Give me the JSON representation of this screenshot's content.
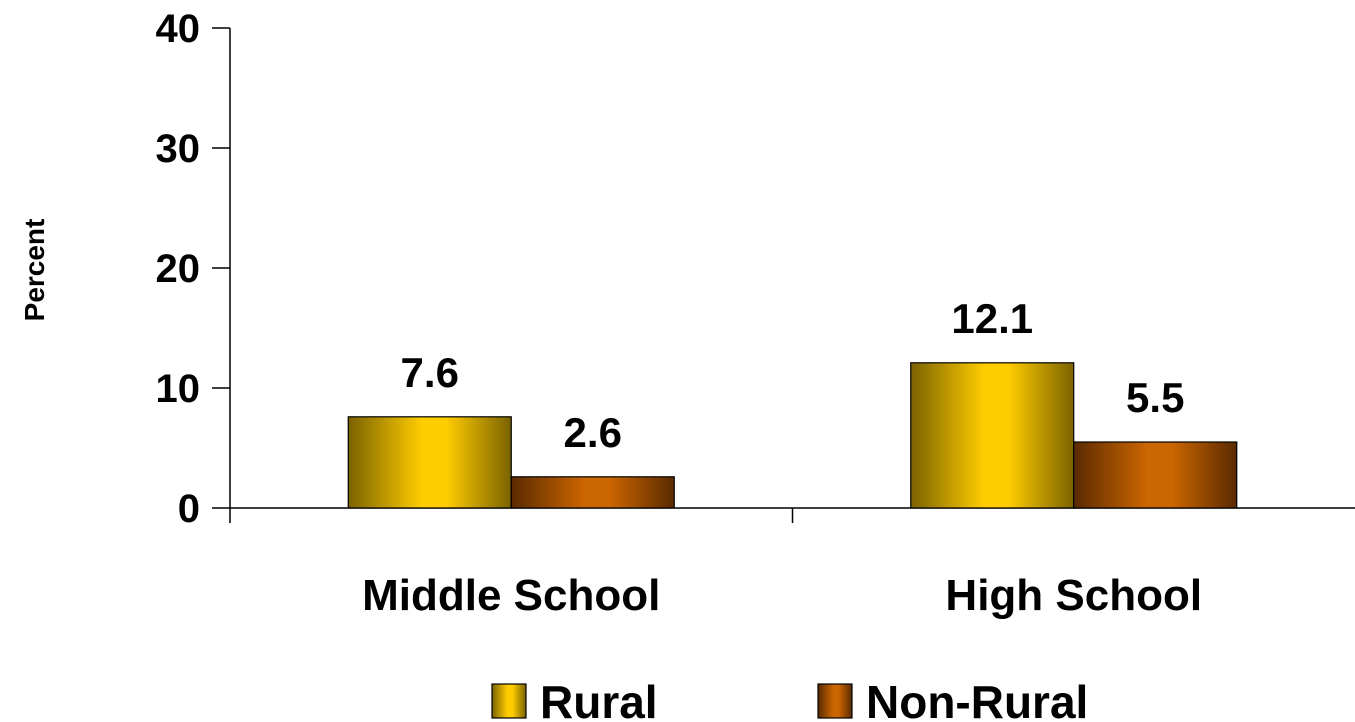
{
  "chart_data": {
    "type": "bar",
    "title": "",
    "xlabel": "",
    "ylabel": "Percent",
    "ylim": [
      0,
      40
    ],
    "yticks": [
      0,
      10,
      20,
      30,
      40
    ],
    "categories": [
      "Middle School",
      "High School"
    ],
    "series": [
      {
        "name": "Rural",
        "values": [
          7.6,
          12.1
        ],
        "color": "#FFCC00",
        "shade": "#7A6200"
      },
      {
        "name": "Non-Rural",
        "values": [
          2.6,
          5.5
        ],
        "color": "#CC6600",
        "shade": "#5A2A00"
      }
    ],
    "grid": false,
    "legend_position": "bottom"
  }
}
